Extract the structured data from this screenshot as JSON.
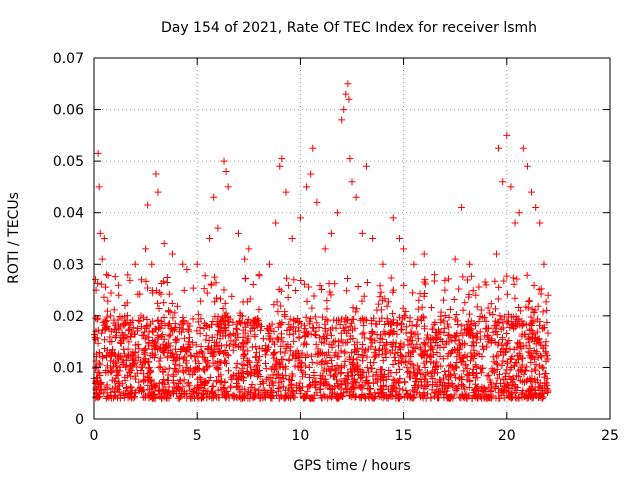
{
  "chart_data": {
    "type": "scatter",
    "title": "Day 154 of 2021, Rate Of TEC Index for receiver lsmh",
    "xlabel": "GPS time / hours",
    "ylabel": "ROTI / TECUs",
    "xlim": [
      0,
      25
    ],
    "ylim": [
      0,
      0.07
    ],
    "xticks": [
      0,
      5,
      10,
      15,
      20,
      25
    ],
    "xtick_labels": [
      "0",
      "5",
      "10",
      "15",
      "20",
      "25"
    ],
    "yticks": [
      0,
      0.01,
      0.02,
      0.03,
      0.04,
      0.05,
      0.06,
      0.07
    ],
    "ytick_labels": [
      "0",
      "0.01",
      "0.02",
      "0.03",
      "0.04",
      "0.05",
      "0.06",
      "0.07"
    ],
    "grid": true,
    "marker": "plus",
    "color": "#ff0000",
    "x_range_of_data": [
      0,
      22
    ],
    "typical_y_band": [
      0.004,
      0.02
    ],
    "series": [
      {
        "name": "ROTI",
        "points": [
          [
            0.1,
            0.025
          ],
          [
            0.2,
            0.0515
          ],
          [
            0.25,
            0.045
          ],
          [
            0.3,
            0.036
          ],
          [
            0.4,
            0.031
          ],
          [
            0.5,
            0.035
          ],
          [
            0.6,
            0.028
          ],
          [
            0.8,
            0.02
          ],
          [
            1.2,
            0.024
          ],
          [
            1.5,
            0.022
          ],
          [
            2.0,
            0.03
          ],
          [
            2.3,
            0.027
          ],
          [
            2.5,
            0.033
          ],
          [
            2.6,
            0.0415
          ],
          [
            2.8,
            0.03
          ],
          [
            3.0,
            0.0475
          ],
          [
            3.1,
            0.044
          ],
          [
            3.4,
            0.034
          ],
          [
            3.8,
            0.032
          ],
          [
            4.3,
            0.03
          ],
          [
            4.5,
            0.029
          ],
          [
            5.0,
            0.03
          ],
          [
            5.6,
            0.035
          ],
          [
            5.8,
            0.043
          ],
          [
            6.0,
            0.037
          ],
          [
            6.3,
            0.05
          ],
          [
            6.4,
            0.048
          ],
          [
            6.5,
            0.045
          ],
          [
            7.0,
            0.036
          ],
          [
            7.3,
            0.031
          ],
          [
            7.5,
            0.033
          ],
          [
            8.0,
            0.028
          ],
          [
            8.5,
            0.03
          ],
          [
            8.8,
            0.038
          ],
          [
            9.0,
            0.049
          ],
          [
            9.1,
            0.0505
          ],
          [
            9.3,
            0.044
          ],
          [
            9.6,
            0.035
          ],
          [
            10.0,
            0.039
          ],
          [
            10.3,
            0.045
          ],
          [
            10.5,
            0.0475
          ],
          [
            10.6,
            0.0525
          ],
          [
            10.8,
            0.042
          ],
          [
            11.2,
            0.033
          ],
          [
            11.5,
            0.036
          ],
          [
            11.8,
            0.04
          ],
          [
            12.0,
            0.058
          ],
          [
            12.1,
            0.06
          ],
          [
            12.2,
            0.063
          ],
          [
            12.3,
            0.065
          ],
          [
            12.35,
            0.062
          ],
          [
            12.4,
            0.0505
          ],
          [
            12.5,
            0.046
          ],
          [
            12.7,
            0.043
          ],
          [
            13.0,
            0.036
          ],
          [
            13.2,
            0.049
          ],
          [
            13.5,
            0.035
          ],
          [
            14.0,
            0.03
          ],
          [
            14.5,
            0.039
          ],
          [
            14.8,
            0.035
          ],
          [
            15.0,
            0.033
          ],
          [
            15.5,
            0.03
          ],
          [
            16.0,
            0.032
          ],
          [
            16.5,
            0.028
          ],
          [
            17.0,
            0.025
          ],
          [
            17.5,
            0.031
          ],
          [
            17.8,
            0.041
          ],
          [
            18.2,
            0.03
          ],
          [
            18.5,
            0.024
          ],
          [
            19.0,
            0.026
          ],
          [
            19.5,
            0.032
          ],
          [
            19.6,
            0.0525
          ],
          [
            19.8,
            0.046
          ],
          [
            20.0,
            0.055
          ],
          [
            20.2,
            0.045
          ],
          [
            20.4,
            0.038
          ],
          [
            20.6,
            0.04
          ],
          [
            20.8,
            0.0525
          ],
          [
            21.0,
            0.049
          ],
          [
            21.2,
            0.044
          ],
          [
            21.4,
            0.041
          ],
          [
            21.6,
            0.038
          ],
          [
            21.8,
            0.03
          ],
          [
            22.0,
            0.024
          ]
        ]
      }
    ]
  }
}
